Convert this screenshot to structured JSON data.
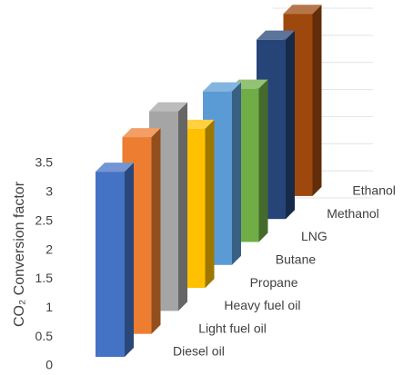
{
  "chart_data": {
    "type": "bar3d",
    "y_label": "CO₂ Conversion factor",
    "categories": [
      "Diesel oil",
      "Light fuel oil",
      "Heavy fuel oil",
      "Propane",
      "Butane",
      "LNG",
      "Methanol",
      "Ethanol"
    ],
    "values": [
      3.2,
      3.4,
      3.45,
      2.75,
      3.0,
      2.65,
      3.1,
      3.15
    ],
    "colors": [
      "#4472c4",
      "#ed7d31",
      "#a5a5a5",
      "#ffc000",
      "#5b9bd5",
      "#70ad47",
      "#264478",
      "#9e480e"
    ],
    "ylim": [
      0,
      3.5
    ],
    "yticks": [
      0,
      0.5,
      1,
      1.5,
      2,
      2.5,
      3,
      3.5
    ],
    "grid": true
  }
}
